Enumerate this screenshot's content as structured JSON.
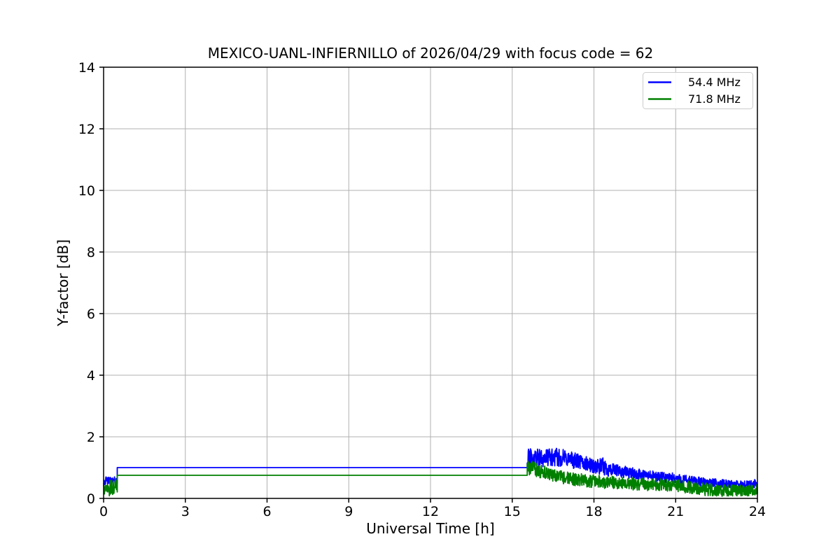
{
  "figure": {
    "background": "#ffffff",
    "plot_background": "#ffffff",
    "spine_color": "#000000",
    "grid_color": "#b0b0b0"
  },
  "chart_data": {
    "type": "line",
    "title": "MEXICO-UANL-INFIERNILLO of 2026/04/29 with focus code = 62",
    "xlabel": "Universal Time [h]",
    "ylabel": "Y-factor [dB]",
    "xlim": [
      0,
      24
    ],
    "ylim": [
      0,
      14
    ],
    "xticks": [
      0,
      3,
      6,
      9,
      12,
      15,
      18,
      21,
      24
    ],
    "yticks": [
      0,
      2,
      4,
      6,
      8,
      10,
      12,
      14
    ],
    "grid": true,
    "legend_position": "upper right",
    "series": [
      {
        "name": "54.4 MHz",
        "color": "#0000ff",
        "segments": [
          {
            "type": "noisy",
            "x_start": 0.0,
            "x_end": 0.5,
            "envelope": [
              {
                "x": 0.0,
                "center": 0.57,
                "half": 0.13
              },
              {
                "x": 0.5,
                "center": 0.57,
                "half": 0.13
              }
            ]
          },
          {
            "type": "flat",
            "x_start": 0.5,
            "x_end": 15.55,
            "y": 1.0
          },
          {
            "type": "noisy",
            "x_start": 15.55,
            "x_end": 24.0,
            "envelope": [
              {
                "x": 15.55,
                "center": 1.3,
                "half": 0.33
              },
              {
                "x": 16.0,
                "center": 1.3,
                "half": 0.3
              },
              {
                "x": 16.3,
                "center": 1.33,
                "half": 0.28
              },
              {
                "x": 16.7,
                "center": 1.33,
                "half": 0.3
              },
              {
                "x": 17.0,
                "center": 1.3,
                "half": 0.28
              },
              {
                "x": 17.4,
                "center": 1.2,
                "half": 0.26
              },
              {
                "x": 17.8,
                "center": 1.1,
                "half": 0.24
              },
              {
                "x": 18.1,
                "center": 1.02,
                "half": 0.24
              },
              {
                "x": 18.35,
                "center": 1.02,
                "half": 0.3
              },
              {
                "x": 18.6,
                "center": 0.92,
                "half": 0.22
              },
              {
                "x": 19.0,
                "center": 0.87,
                "half": 0.2
              },
              {
                "x": 19.5,
                "center": 0.8,
                "half": 0.18
              },
              {
                "x": 20.0,
                "center": 0.74,
                "half": 0.17
              },
              {
                "x": 20.5,
                "center": 0.68,
                "half": 0.17
              },
              {
                "x": 21.0,
                "center": 0.64,
                "half": 0.18
              },
              {
                "x": 21.5,
                "center": 0.58,
                "half": 0.16
              },
              {
                "x": 22.0,
                "center": 0.53,
                "half": 0.15
              },
              {
                "x": 22.5,
                "center": 0.49,
                "half": 0.14
              },
              {
                "x": 23.0,
                "center": 0.46,
                "half": 0.13
              },
              {
                "x": 23.5,
                "center": 0.44,
                "half": 0.13
              },
              {
                "x": 23.8,
                "center": 0.46,
                "half": 0.14
              },
              {
                "x": 24.0,
                "center": 0.5,
                "half": 0.14
              }
            ]
          }
        ]
      },
      {
        "name": "71.8 MHz",
        "color": "#008000",
        "segments": [
          {
            "type": "noisy",
            "x_start": 0.0,
            "x_end": 0.5,
            "envelope": [
              {
                "x": 0.0,
                "center": 0.33,
                "half": 0.27
              },
              {
                "x": 0.5,
                "center": 0.33,
                "half": 0.27
              }
            ]
          },
          {
            "type": "flat",
            "x_start": 0.5,
            "x_end": 15.55,
            "y": 0.75
          },
          {
            "type": "noisy",
            "x_start": 15.55,
            "x_end": 24.0,
            "envelope": [
              {
                "x": 15.55,
                "center": 1.0,
                "half": 0.25
              },
              {
                "x": 15.8,
                "center": 0.95,
                "half": 0.23
              },
              {
                "x": 16.2,
                "center": 0.83,
                "half": 0.22
              },
              {
                "x": 16.6,
                "center": 0.73,
                "half": 0.21
              },
              {
                "x": 17.0,
                "center": 0.66,
                "half": 0.21
              },
              {
                "x": 17.5,
                "center": 0.6,
                "half": 0.21
              },
              {
                "x": 18.0,
                "center": 0.55,
                "half": 0.21
              },
              {
                "x": 18.5,
                "center": 0.52,
                "half": 0.21
              },
              {
                "x": 19.0,
                "center": 0.5,
                "half": 0.2
              },
              {
                "x": 19.5,
                "center": 0.47,
                "half": 0.2
              },
              {
                "x": 20.0,
                "center": 0.45,
                "half": 0.2
              },
              {
                "x": 20.5,
                "center": 0.43,
                "half": 0.2
              },
              {
                "x": 21.0,
                "center": 0.41,
                "half": 0.21
              },
              {
                "x": 21.5,
                "center": 0.36,
                "half": 0.2
              },
              {
                "x": 22.0,
                "center": 0.3,
                "half": 0.21
              },
              {
                "x": 22.5,
                "center": 0.27,
                "half": 0.2
              },
              {
                "x": 23.0,
                "center": 0.26,
                "half": 0.19
              },
              {
                "x": 23.5,
                "center": 0.25,
                "half": 0.18
              },
              {
                "x": 24.0,
                "center": 0.28,
                "half": 0.18
              }
            ]
          }
        ]
      }
    ]
  }
}
